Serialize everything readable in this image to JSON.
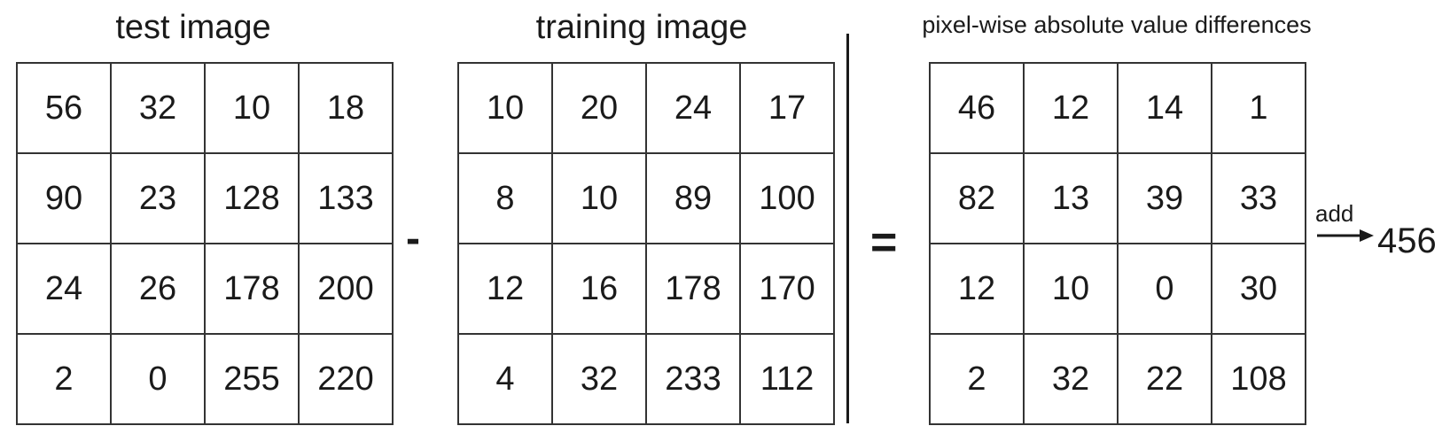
{
  "test_image": {
    "title": "test image",
    "rows": [
      [
        "56",
        "32",
        "10",
        "18"
      ],
      [
        "90",
        "23",
        "128",
        "133"
      ],
      [
        "24",
        "26",
        "178",
        "200"
      ],
      [
        "2",
        "0",
        "255",
        "220"
      ]
    ]
  },
  "operator_minus": "-",
  "training_image": {
    "title": "training image",
    "rows": [
      [
        "10",
        "20",
        "24",
        "17"
      ],
      [
        "8",
        "10",
        "89",
        "100"
      ],
      [
        "12",
        "16",
        "178",
        "170"
      ],
      [
        "4",
        "32",
        "233",
        "112"
      ]
    ]
  },
  "operator_equals": "=",
  "differences": {
    "title": "pixel-wise absolute value differences",
    "rows": [
      [
        "46",
        "12",
        "14",
        "1"
      ],
      [
        "82",
        "13",
        "39",
        "33"
      ],
      [
        "12",
        "10",
        "0",
        "30"
      ],
      [
        "2",
        "32",
        "22",
        "108"
      ]
    ]
  },
  "sum": {
    "label": "add",
    "arrow_icon": "right-arrow-icon",
    "value": "456"
  }
}
